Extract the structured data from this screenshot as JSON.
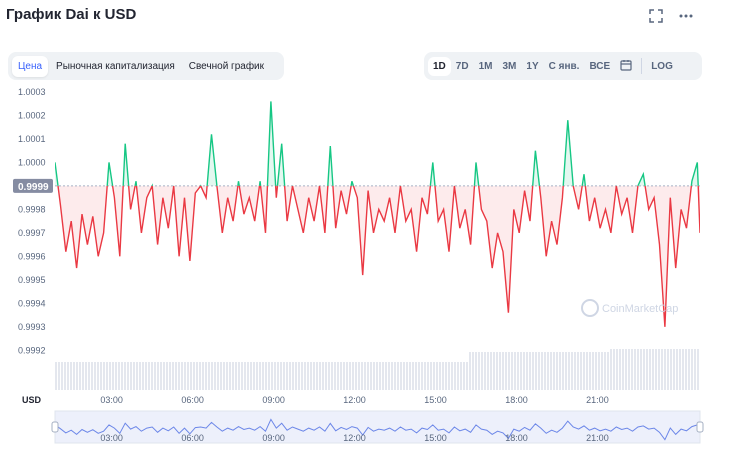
{
  "header": {
    "title": "График Dai к USD",
    "fullscreen_icon": "expand-icon",
    "more_icon": "ellipsis-icon"
  },
  "tabs_left": [
    {
      "label": "Цена",
      "active": true
    },
    {
      "label": "Рыночная капитализация",
      "active": false
    },
    {
      "label": "Свечной график",
      "active": false
    }
  ],
  "tabs_right": [
    {
      "label": "1D",
      "active": true
    },
    {
      "label": "7D",
      "active": false
    },
    {
      "label": "1M",
      "active": false
    },
    {
      "label": "3M",
      "active": false
    },
    {
      "label": "1Y",
      "active": false
    },
    {
      "label": "С янв.",
      "active": false
    },
    {
      "label": "ВСЕ",
      "active": false
    }
  ],
  "log_label": "LOG",
  "calendar_icon": "calendar-icon",
  "watermark": "CoinMarketCap",
  "currency_label": "USD",
  "colors": {
    "up": "#16c784",
    "down": "#ea3943",
    "accent": "#3861fb",
    "baseline_tag": "#858ca2"
  },
  "chart_data": {
    "type": "line",
    "baseline": 0.9999,
    "baseline_label": "0.9999",
    "ylim": [
      0.99915,
      1.0003
    ],
    "yticks": [
      "1.0003",
      "1.0002",
      "1.0001",
      "1.0000",
      "0.9998",
      "0.9997",
      "0.9996",
      "0.9995",
      "0.9994",
      "0.9993",
      "0.9992"
    ],
    "ytick_values": [
      1.0003,
      1.0002,
      1.0001,
      1.0,
      0.9998,
      0.9997,
      0.9996,
      0.9995,
      0.9994,
      0.9993,
      0.9992
    ],
    "xticks": [
      "03:00",
      "06:00",
      "09:00",
      "12:00",
      "15:00",
      "18:00",
      "21:00"
    ],
    "xtick_hours": [
      3,
      6,
      9,
      12,
      15,
      18,
      21
    ],
    "xlim_hours": [
      0.9,
      24.8
    ],
    "x_hours": [
      0.9,
      1.1,
      1.3,
      1.5,
      1.7,
      1.9,
      2.1,
      2.3,
      2.5,
      2.7,
      2.9,
      3.1,
      3.3,
      3.5,
      3.7,
      3.9,
      4.1,
      4.3,
      4.5,
      4.7,
      4.9,
      5.1,
      5.3,
      5.5,
      5.7,
      5.9,
      6.1,
      6.3,
      6.5,
      6.7,
      6.9,
      7.1,
      7.3,
      7.5,
      7.7,
      7.9,
      8.1,
      8.3,
      8.5,
      8.7,
      8.9,
      9.1,
      9.3,
      9.5,
      9.7,
      9.9,
      10.1,
      10.3,
      10.5,
      10.7,
      10.9,
      11.1,
      11.3,
      11.5,
      11.7,
      11.9,
      12.1,
      12.3,
      12.5,
      12.7,
      12.9,
      13.1,
      13.3,
      13.5,
      13.7,
      13.9,
      14.1,
      14.3,
      14.5,
      14.7,
      14.9,
      15.1,
      15.3,
      15.5,
      15.7,
      15.9,
      16.1,
      16.3,
      16.5,
      16.7,
      16.9,
      17.1,
      17.3,
      17.5,
      17.7,
      17.9,
      18.1,
      18.3,
      18.5,
      18.7,
      18.9,
      19.1,
      19.3,
      19.5,
      19.7,
      19.9,
      20.1,
      20.3,
      20.5,
      20.7,
      20.9,
      21.1,
      21.3,
      21.5,
      21.7,
      21.9,
      22.1,
      22.3,
      22.5,
      22.7,
      22.9,
      23.1,
      23.3,
      23.5,
      23.7,
      23.9,
      24.1,
      24.3,
      24.5,
      24.7,
      24.8
    ],
    "y": [
      1.0,
      0.99982,
      0.99962,
      0.99975,
      0.99955,
      0.99978,
      0.99965,
      0.99977,
      0.9996,
      0.9997,
      1.0,
      0.99985,
      0.9996,
      1.00008,
      0.9998,
      0.99992,
      0.9997,
      0.99985,
      0.9999,
      0.99965,
      0.99985,
      0.99972,
      0.9999,
      0.9996,
      0.99985,
      0.99958,
      0.99987,
      0.9999,
      0.99985,
      1.00012,
      0.9999,
      0.9997,
      0.99985,
      0.99975,
      0.99992,
      0.99978,
      0.99985,
      0.99975,
      0.99992,
      0.9997,
      1.00026,
      0.99985,
      1.00008,
      0.99975,
      0.9999,
      0.9998,
      0.9997,
      0.99985,
      0.99975,
      0.9999,
      0.9997,
      1.00007,
      0.99972,
      0.99988,
      0.99978,
      0.99992,
      0.99985,
      0.99952,
      0.99988,
      0.9997,
      0.9998,
      0.99975,
      0.99985,
      0.9997,
      0.9999,
      0.99975,
      0.9998,
      0.99962,
      0.99985,
      0.99978,
      1.0,
      0.99975,
      0.9998,
      0.99962,
      0.9999,
      0.99972,
      0.9998,
      0.99965,
      1.0,
      0.9998,
      0.99975,
      0.99955,
      0.9997,
      0.99962,
      0.99936,
      0.9998,
      0.9997,
      0.99988,
      0.99975,
      1.00005,
      0.99985,
      0.9996,
      0.99975,
      0.99965,
      0.99985,
      1.00018,
      0.9999,
      0.9998,
      0.99995,
      0.99975,
      0.99985,
      0.99972,
      0.9998,
      0.9997,
      0.9999,
      0.99978,
      0.99985,
      0.9997,
      0.9999,
      0.99995,
      0.9998,
      0.99985,
      0.99965,
      0.9993,
      0.99985,
      0.99955,
      0.9998,
      0.99972,
      0.99992,
      1.0,
      0.9997
    ]
  }
}
